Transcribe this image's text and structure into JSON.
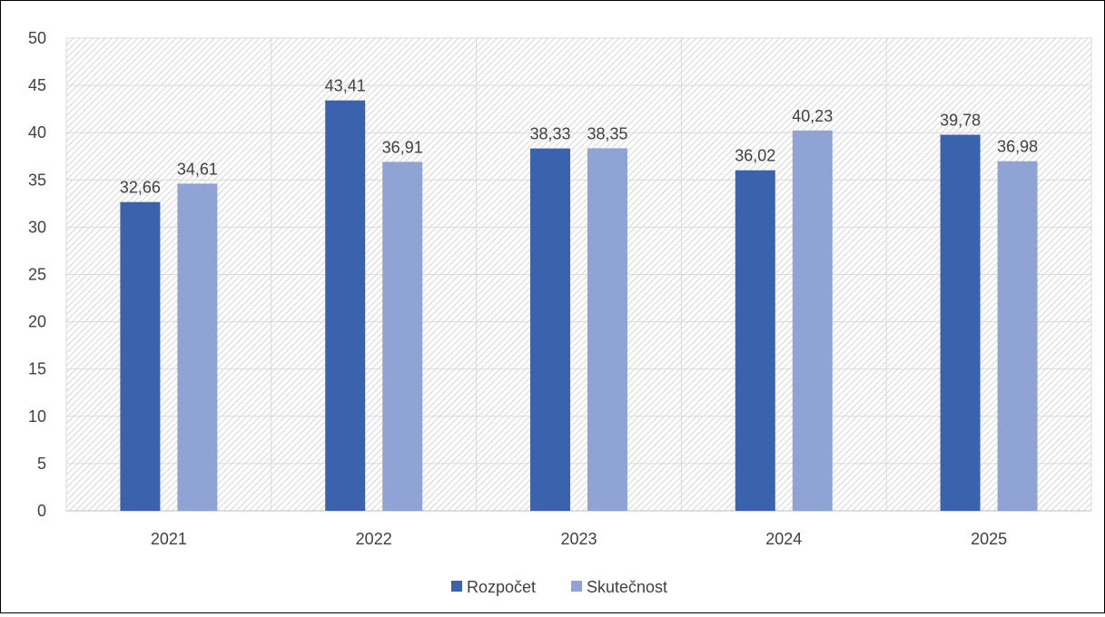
{
  "chart_data": {
    "type": "bar",
    "title": "",
    "xlabel": "",
    "ylabel": "",
    "categories": [
      "2021",
      "2022",
      "2023",
      "2024",
      "2025"
    ],
    "series": [
      {
        "name": "Rozpočet",
        "color": "#3B62AC",
        "values": [
          32.66,
          43.41,
          38.33,
          36.02,
          39.78
        ],
        "labels": [
          "32,66",
          "43,41",
          "38,33",
          "36,02",
          "39,78"
        ]
      },
      {
        "name": "Skutečnost",
        "color": "#8FA4D4",
        "values": [
          34.61,
          36.91,
          38.35,
          40.23,
          36.98
        ],
        "labels": [
          "34,61",
          "36,91",
          "38,35",
          "40,23",
          "36,98"
        ]
      }
    ],
    "ylim": [
      0,
      50
    ],
    "yticks": [
      0,
      5,
      10,
      15,
      20,
      25,
      30,
      35,
      40,
      45,
      50
    ],
    "grid": true,
    "plot_background": "diagonal hatch",
    "legend": "bottom-center"
  }
}
